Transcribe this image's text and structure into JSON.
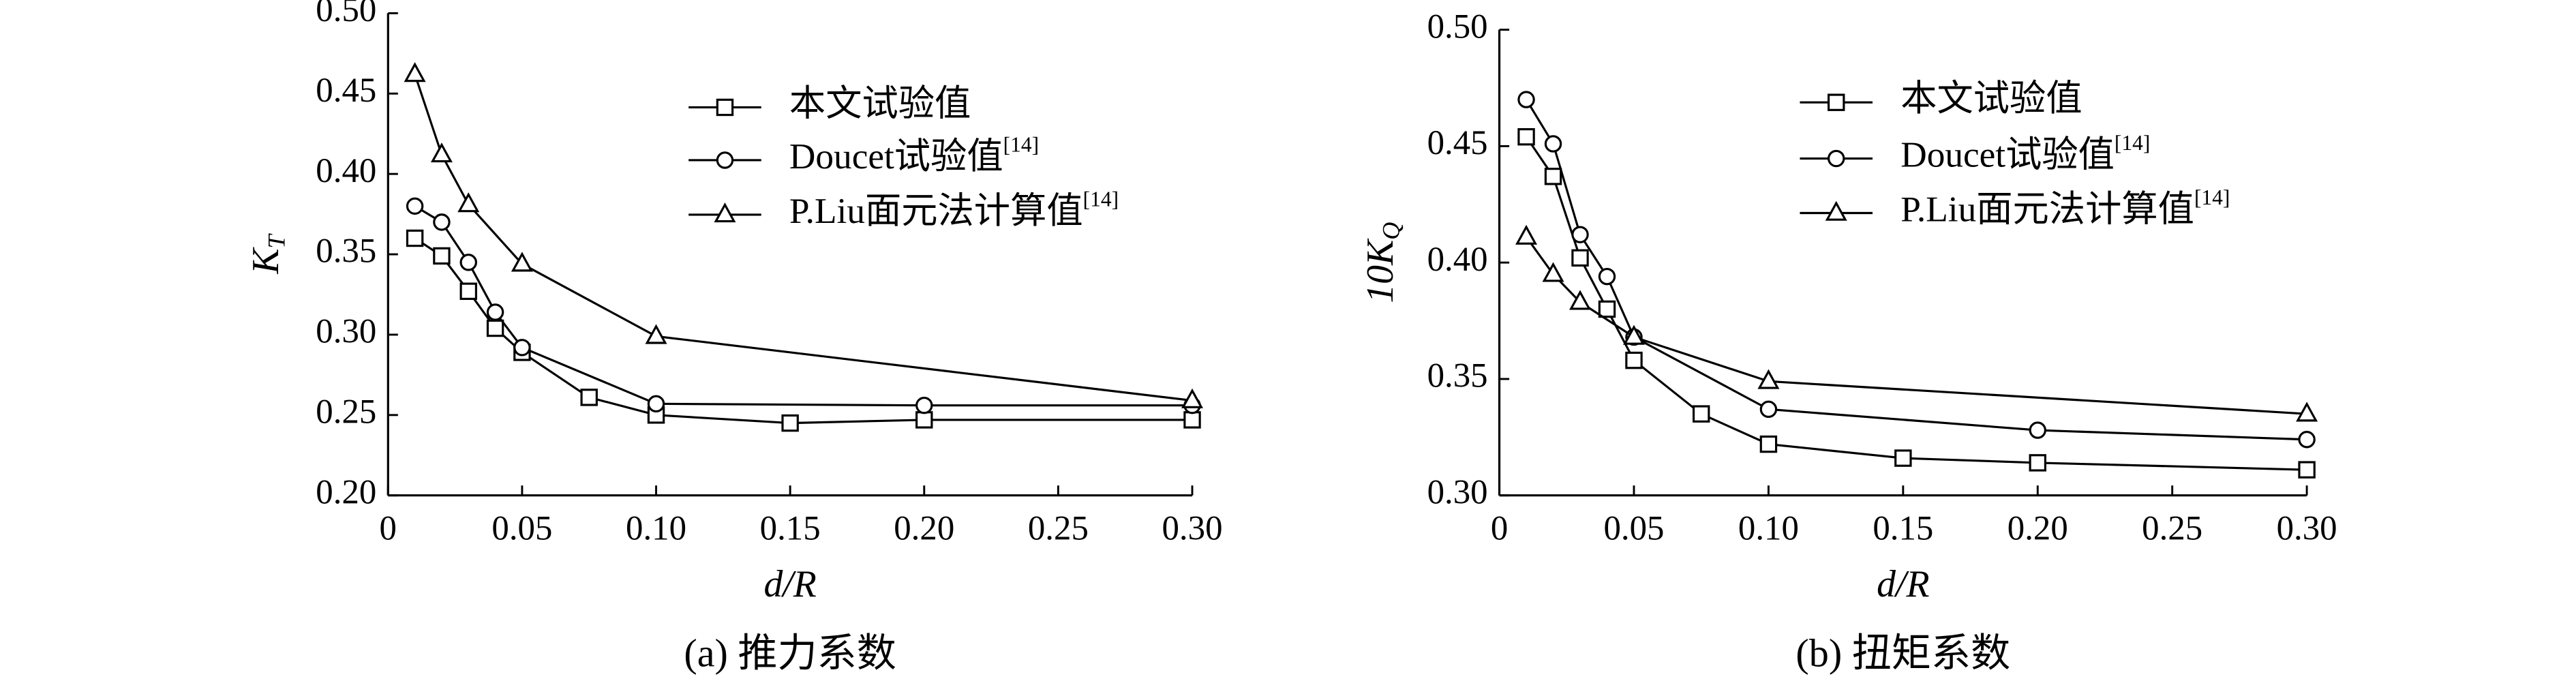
{
  "chart_data": [
    {
      "type": "line",
      "caption": "(a) 推力系数",
      "xlabel": "d/R",
      "ylabel": "K",
      "ylabel_sub": "T",
      "xlim": [
        0,
        0.3
      ],
      "ylim": [
        0.2,
        0.5
      ],
      "xticks": [
        0,
        0.05,
        {
          "value": 0.1,
          "label": "0.10"
        },
        0.15,
        {
          "value": 0.2,
          "label": "0.20"
        },
        0.25,
        {
          "value": 0.3,
          "label": "0.30"
        }
      ],
      "yticks": [
        {
          "value": 0.2,
          "label": "0.20"
        },
        0.25,
        {
          "value": 0.3,
          "label": "0.30"
        },
        0.35,
        {
          "value": 0.4,
          "label": "0.40"
        },
        0.45,
        {
          "value": 0.5,
          "label": "0.50"
        }
      ],
      "series": [
        {
          "name": "本文试验值",
          "marker": "square",
          "color": "#000000",
          "x": [
            0.01,
            0.02,
            0.03,
            0.04,
            0.05,
            0.075,
            0.1,
            0.15,
            0.2,
            0.3
          ],
          "values": [
            0.36,
            0.349,
            0.327,
            0.304,
            0.289,
            0.261,
            0.25,
            0.245,
            0.247,
            0.247
          ]
        },
        {
          "name": "Doucet试验值",
          "note": "[14]",
          "marker": "circle",
          "color": "#000000",
          "x": [
            0.01,
            0.02,
            0.03,
            0.04,
            0.05,
            0.1,
            0.2,
            0.3
          ],
          "values": [
            0.38,
            0.37,
            0.345,
            0.314,
            0.292,
            0.257,
            0.256,
            0.256
          ]
        },
        {
          "name": "P.Liu面元法计算值",
          "note": "[14]",
          "marker": "triangle",
          "color": "#000000",
          "x": [
            0.01,
            0.02,
            0.03,
            0.05,
            0.1,
            0.3
          ],
          "values": [
            0.462,
            0.412,
            0.381,
            0.344,
            0.299,
            0.259
          ]
        }
      ]
    },
    {
      "type": "line",
      "caption": "(b) 扭矩系数",
      "xlabel": "d/R",
      "ylabel": "10K",
      "ylabel_sub": "Q",
      "xlim": [
        0,
        0.3
      ],
      "ylim": [
        0.3,
        0.5
      ],
      "xticks": [
        0,
        0.05,
        {
          "value": 0.1,
          "label": "0.10"
        },
        0.15,
        {
          "value": 0.2,
          "label": "0.20"
        },
        0.25,
        {
          "value": 0.3,
          "label": "0.30"
        }
      ],
      "yticks": [
        {
          "value": 0.3,
          "label": "0.30"
        },
        0.35,
        {
          "value": 0.4,
          "label": "0.40"
        },
        0.45,
        {
          "value": 0.5,
          "label": "0.50"
        }
      ],
      "series": [
        {
          "name": "本文试验值",
          "marker": "square",
          "color": "#000000",
          "x": [
            0.01,
            0.02,
            0.03,
            0.04,
            0.05,
            0.075,
            0.1,
            0.15,
            0.2,
            0.3
          ],
          "values": [
            0.454,
            0.437,
            0.402,
            0.38,
            0.358,
            0.335,
            0.322,
            0.316,
            0.314,
            0.311
          ]
        },
        {
          "name": "Doucet试验值",
          "note": "[14]",
          "marker": "circle",
          "color": "#000000",
          "x": [
            0.01,
            0.02,
            0.03,
            0.04,
            0.05,
            0.1,
            0.2,
            0.3
          ],
          "values": [
            0.47,
            0.451,
            0.412,
            0.394,
            0.368,
            0.337,
            0.328,
            0.324
          ]
        },
        {
          "name": "P.Liu面元法计算值",
          "note": "[14]",
          "marker": "triangle",
          "color": "#000000",
          "x": [
            0.01,
            0.02,
            0.03,
            0.05,
            0.1,
            0.3
          ],
          "values": [
            0.411,
            0.395,
            0.383,
            0.368,
            0.349,
            0.335
          ]
        }
      ]
    }
  ]
}
